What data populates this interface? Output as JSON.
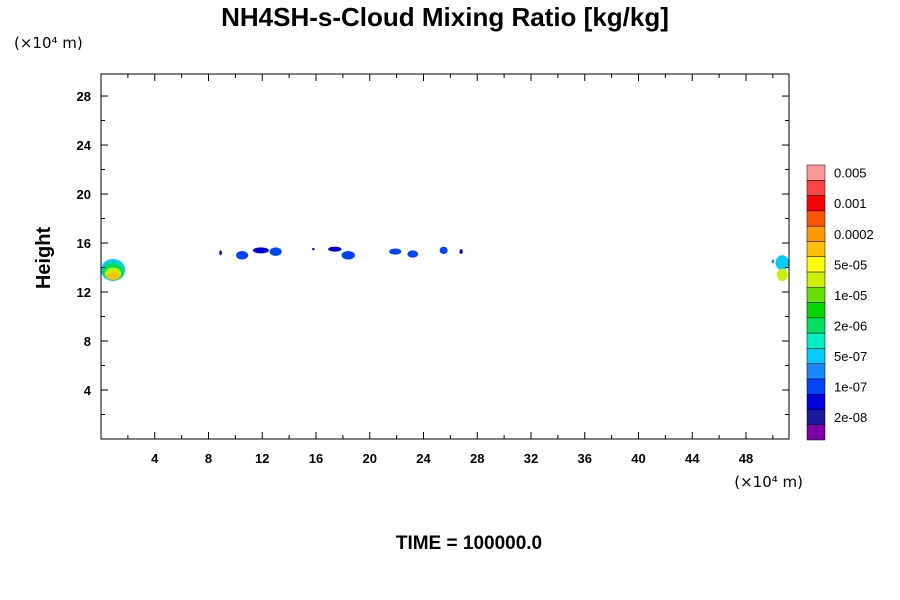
{
  "chart_data": {
    "type": "heatmap",
    "title": "NH4SH-s-Cloud Mixing Ratio [kg/kg]",
    "ylabel": "Height",
    "x_unit": "(×10⁴ m)",
    "y_unit": "(×10⁴ m)",
    "xlim": [
      0,
      51.2
    ],
    "ylim": [
      0,
      29.8
    ],
    "x_ticks": [
      4,
      8,
      12,
      16,
      20,
      24,
      28,
      32,
      36,
      40,
      44,
      48
    ],
    "y_ticks": [
      4,
      8,
      12,
      16,
      20,
      24,
      28
    ],
    "footer": "TIME = 100000.0",
    "colorbar": {
      "colors": [
        "#7a00a8",
        "#1a1a9a",
        "#0000e0",
        "#0044ff",
        "#1a88ff",
        "#00ccff",
        "#00f0c0",
        "#00e060",
        "#00d800",
        "#66e000",
        "#ccee00",
        "#ffff00",
        "#ffc000",
        "#ff9900",
        "#ff5500",
        "#ff0000",
        "#ff4444",
        "#ff9999"
      ],
      "labels": [
        "2e-08",
        "1e-07",
        "5e-07",
        "2e-06",
        "1e-05",
        "5e-05",
        "0.0002",
        "0.001",
        "0.005"
      ]
    },
    "blobs": [
      {
        "x": 0.9,
        "y": 13.8,
        "rx": 0.9,
        "ry": 0.9,
        "level": 5
      },
      {
        "x": 0.9,
        "y": 13.7,
        "rx": 0.8,
        "ry": 0.7,
        "level": 7
      },
      {
        "x": 0.9,
        "y": 13.5,
        "rx": 0.6,
        "ry": 0.5,
        "level": 10
      },
      {
        "x": 0.9,
        "y": 13.3,
        "rx": 0.5,
        "ry": 0.3,
        "level": 12
      },
      {
        "x": 8.9,
        "y": 15.2,
        "rx": 0.1,
        "ry": 0.2,
        "level": 1
      },
      {
        "x": 10.5,
        "y": 15.0,
        "rx": 0.45,
        "ry": 0.35,
        "level": 3
      },
      {
        "x": 11.9,
        "y": 15.4,
        "rx": 0.6,
        "ry": 0.25,
        "level": 2
      },
      {
        "x": 13.0,
        "y": 15.3,
        "rx": 0.45,
        "ry": 0.35,
        "level": 3
      },
      {
        "x": 15.8,
        "y": 15.5,
        "rx": 0.1,
        "ry": 0.1,
        "level": 1
      },
      {
        "x": 17.4,
        "y": 15.5,
        "rx": 0.5,
        "ry": 0.2,
        "level": 2
      },
      {
        "x": 18.4,
        "y": 15.0,
        "rx": 0.5,
        "ry": 0.35,
        "level": 3
      },
      {
        "x": 21.9,
        "y": 15.3,
        "rx": 0.45,
        "ry": 0.25,
        "level": 3
      },
      {
        "x": 23.2,
        "y": 15.1,
        "rx": 0.4,
        "ry": 0.3,
        "level": 3
      },
      {
        "x": 25.5,
        "y": 15.4,
        "rx": 0.3,
        "ry": 0.3,
        "level": 3
      },
      {
        "x": 26.8,
        "y": 15.3,
        "rx": 0.12,
        "ry": 0.2,
        "level": 2
      },
      {
        "x": 50.7,
        "y": 14.4,
        "rx": 0.5,
        "ry": 0.6,
        "level": 5
      },
      {
        "x": 50.7,
        "y": 13.4,
        "rx": 0.4,
        "ry": 0.5,
        "level": 10
      },
      {
        "x": 50.0,
        "y": 14.5,
        "rx": 0.1,
        "ry": 0.15,
        "level": 4
      }
    ]
  }
}
